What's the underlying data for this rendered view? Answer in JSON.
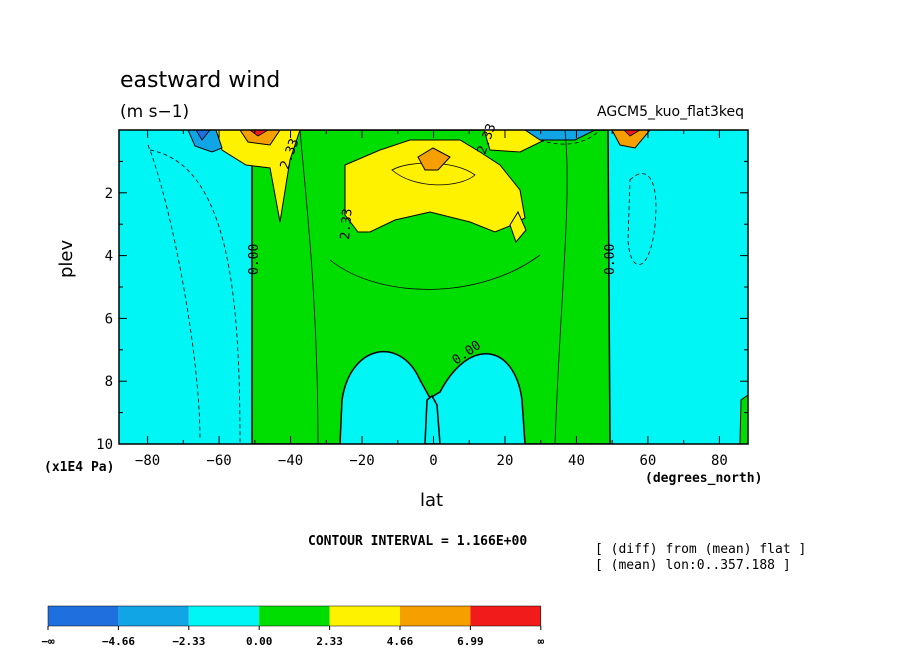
{
  "header": {
    "title": "eastward wind",
    "units": "(m s−1)",
    "experiment": "AGCM5_kuo_flat3keq"
  },
  "footer": {
    "contour_interval": "CONTOUR INTERVAL = 1.166E+00",
    "info_line1": "[ (diff) from (mean) flat ]",
    "info_line2": "[ (mean) lon:0..357.188 ]"
  },
  "chart_data": {
    "type": "heatmap",
    "title": "eastward wind",
    "subtitle": "(m s-1)",
    "xlabel": "lat",
    "x_unit": "(degrees_north)",
    "ylabel": "plev",
    "y_unit": "(x1E4 Pa)",
    "xlim": [
      -88,
      88
    ],
    "ylim": [
      10,
      0
    ],
    "x_ticks": [
      -80,
      -60,
      -40,
      -20,
      0,
      20,
      40,
      60,
      80
    ],
    "x_tick_labels": [
      "−80",
      "−60",
      "−40",
      "−20",
      "0",
      "20",
      "40",
      "60",
      "80"
    ],
    "y_ticks": [
      2,
      4,
      6,
      8,
      10
    ],
    "y_tick_labels": [
      "2",
      "4",
      "6",
      "8",
      "10"
    ],
    "contour_interval": 1.166,
    "contour_labels": [
      "0.00",
      "2.33"
    ],
    "levels": [
      "−∞",
      "−4.66",
      "−2.33",
      "0.00",
      "2.33",
      "4.66",
      "6.99",
      "∞"
    ],
    "colors": [
      "#1f6fdf",
      "#12a5e5",
      "#00f5f5",
      "#00dd00",
      "#fff200",
      "#f5a000",
      "#f21b1b"
    ]
  }
}
